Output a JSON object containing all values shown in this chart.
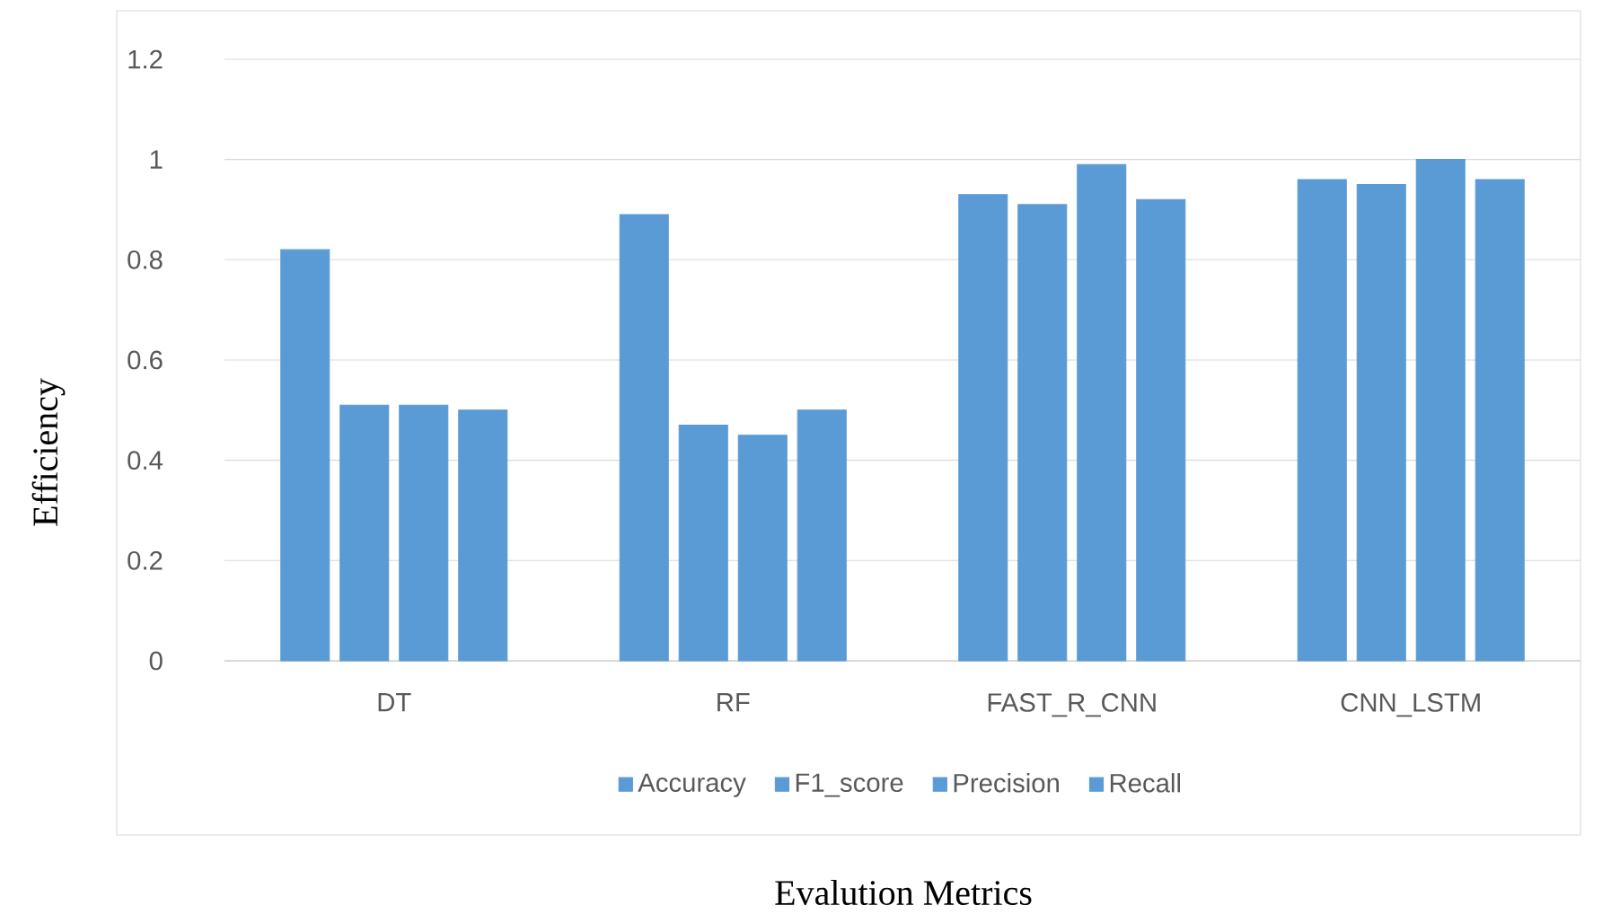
{
  "chart_data": {
    "type": "bar",
    "xlabel": "Evalution Metrics",
    "ylabel": "Efficiency",
    "categories": [
      "DT",
      "RF",
      "FAST_R_CNN",
      "CNN_LSTM"
    ],
    "series": [
      {
        "name": "Accuracy",
        "color": "#5b9bd5",
        "values": [
          0.82,
          0.89,
          0.93,
          0.96
        ]
      },
      {
        "name": "F1_score",
        "color": "#5b9bd5",
        "values": [
          0.51,
          0.47,
          0.91,
          0.95
        ]
      },
      {
        "name": "Precision",
        "color": "#5b9bd5",
        "values": [
          0.51,
          0.45,
          0.99,
          1.0
        ]
      },
      {
        "name": "Recall",
        "color": "#5b9bd5",
        "values": [
          0.5,
          0.5,
          0.92,
          0.96
        ]
      }
    ],
    "ylim": [
      0,
      1.2
    ],
    "yticks": [
      0,
      0.2,
      0.4,
      0.6,
      0.8,
      1,
      1.2
    ],
    "grid": "y",
    "legend": "bottom"
  }
}
